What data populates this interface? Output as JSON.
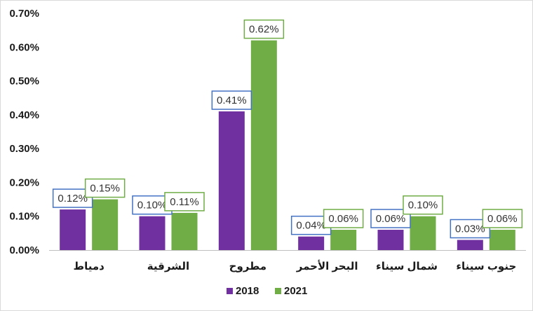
{
  "chart_data": {
    "type": "bar",
    "categories": [
      "دمياط",
      "الشرقية",
      "مطروح",
      "البحر الأحمر",
      "شمال سيناء",
      "جنوب سيناء"
    ],
    "series": [
      {
        "name": "2018",
        "color": "#7030a0",
        "label_border": "#4472c4",
        "values": [
          0.12,
          0.1,
          0.41,
          0.04,
          0.06,
          0.03
        ]
      },
      {
        "name": "2021",
        "color": "#70ad47",
        "label_border": "#70ad47",
        "values": [
          0.15,
          0.11,
          0.62,
          0.06,
          0.1,
          0.06
        ]
      }
    ],
    "value_labels": [
      [
        "0.12%",
        "0.10%",
        "0.41%",
        "0.04%",
        "0.06%",
        "0.03%"
      ],
      [
        "0.15%",
        "0.11%",
        "0.62%",
        "0.06%",
        "0.10%",
        "0.06%"
      ]
    ],
    "yticks": [
      0,
      0.1,
      0.2,
      0.3,
      0.4,
      0.5,
      0.6,
      0.7
    ],
    "ytick_labels": [
      "0.00%",
      "0.10%",
      "0.20%",
      "0.30%",
      "0.40%",
      "0.50%",
      "0.60%",
      "0.70%"
    ],
    "ylim": [
      0,
      0.7
    ],
    "y_unit": "%",
    "grid": false,
    "legend": {
      "position": "bottom",
      "entries": [
        "2018",
        "2021"
      ]
    }
  }
}
